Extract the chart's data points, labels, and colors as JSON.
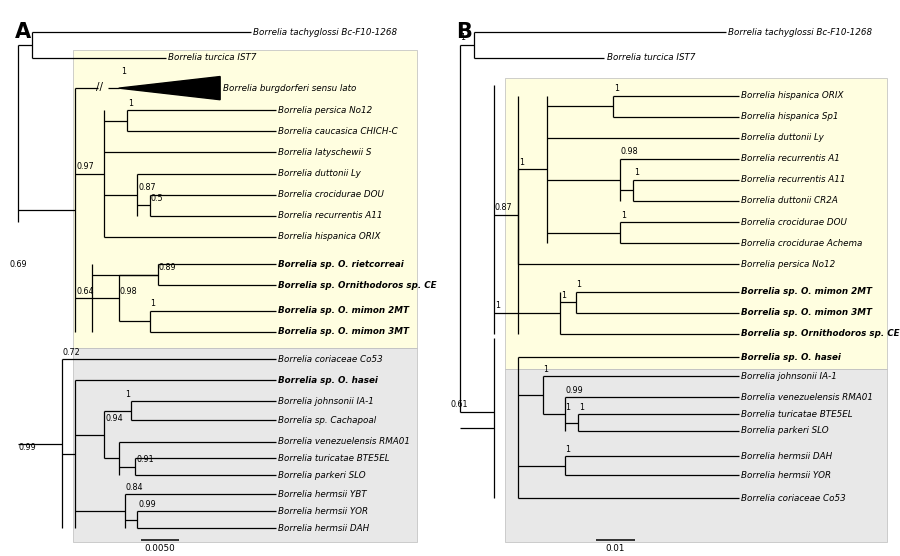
{
  "fig_width": 9.0,
  "fig_height": 5.56,
  "bg_color": "#ffffff",
  "yellow_bg": "#fffee0",
  "gray_bg": "#e8e8e8",
  "panel_A_label": "A",
  "panel_B_label": "B",
  "scale_bar_A": "0.0050",
  "scale_bar_B": "0.01",
  "taxa_A": [
    {
      "label": "Borrelia tachyglossi Bc-F10-1268",
      "bold": false
    },
    {
      "label": "Borrelia turcica IST7",
      "bold": false
    },
    {
      "label": "Borrelia burgdorferi sensu lato",
      "bold": false
    },
    {
      "label": "Borrelia persica No12",
      "bold": false
    },
    {
      "label": "Borrelia caucasica CHICH-C",
      "bold": false
    },
    {
      "label": "Borrelia latyschewii S",
      "bold": false
    },
    {
      "label": "Borrelia duttonii Ly",
      "bold": false
    },
    {
      "label": "Borrelia crocidurae DOU",
      "bold": false
    },
    {
      "label": "Borrelia recurrentis A11",
      "bold": false
    },
    {
      "label": "Borrelia hispanica ORIX",
      "bold": false
    },
    {
      "label": "Borrelia sp. O. rietcorreai",
      "bold": true
    },
    {
      "label": "Borrelia sp. Ornithodoros sp. CE",
      "bold": true
    },
    {
      "label": "Borrelia sp. O. mimon 2MT",
      "bold": true
    },
    {
      "label": "Borrelia sp. O. mimon 3MT",
      "bold": true
    },
    {
      "label": "Borrelia coriaceae Co53",
      "bold": false
    },
    {
      "label": "Borrelia sp. O. hasei",
      "bold": true
    },
    {
      "label": "Borrelia johnsonii IA-1",
      "bold": false
    },
    {
      "label": "Borrelia sp. Cachapoal",
      "bold": false
    },
    {
      "label": "Borrelia venezuelensis RMA01",
      "bold": false
    },
    {
      "label": "Borrelia turicatae BTE5EL",
      "bold": false
    },
    {
      "label": "Borrelia parkeri SLO",
      "bold": false
    },
    {
      "label": "Borrelia hermsii YBT",
      "bold": false
    },
    {
      "label": "Borrelia hermsii YOR",
      "bold": false
    },
    {
      "label": "Borrelia hermsii DAH",
      "bold": false
    }
  ],
  "taxa_B": [
    {
      "label": "Borrelia tachyglossi Bc-F10-1268",
      "bold": false
    },
    {
      "label": "Borrelia turcica IST7",
      "bold": false
    },
    {
      "label": "Borrelia hispanica ORIX",
      "bold": false
    },
    {
      "label": "Borrelia hispanica Sp1",
      "bold": false
    },
    {
      "label": "Borrelia duttonii Ly",
      "bold": false
    },
    {
      "label": "Borrelia recurrentis A1",
      "bold": false
    },
    {
      "label": "Borrelia recurrentis A11",
      "bold": false
    },
    {
      "label": "Borrelia duttonii CR2A",
      "bold": false
    },
    {
      "label": "Borrelia crocidurae DOU",
      "bold": false
    },
    {
      "label": "Borrelia crocidurae Achema",
      "bold": false
    },
    {
      "label": "Borrelia persica No12",
      "bold": false
    },
    {
      "label": "Borrelia sp. O. mimon 2MT",
      "bold": true
    },
    {
      "label": "Borrelia sp. O. mimon 3MT",
      "bold": true
    },
    {
      "label": "Borrelia sp. Ornithodoros sp. CE",
      "bold": true
    },
    {
      "label": "Borrelia sp. O. hasei",
      "bold": true
    },
    {
      "label": "Borrelia johnsonii IA-1",
      "bold": false
    },
    {
      "label": "Borrelia venezuelensis RMA01",
      "bold": false
    },
    {
      "label": "Borrelia turicatae BTE5EL",
      "bold": false
    },
    {
      "label": "Borrelia parkeri SLO",
      "bold": false
    },
    {
      "label": "Borrelia hermsii DAH",
      "bold": false
    },
    {
      "label": "Borrelia hermsii YOR",
      "bold": false
    },
    {
      "label": "Borrelia coriaceae Co53",
      "bold": false
    }
  ]
}
